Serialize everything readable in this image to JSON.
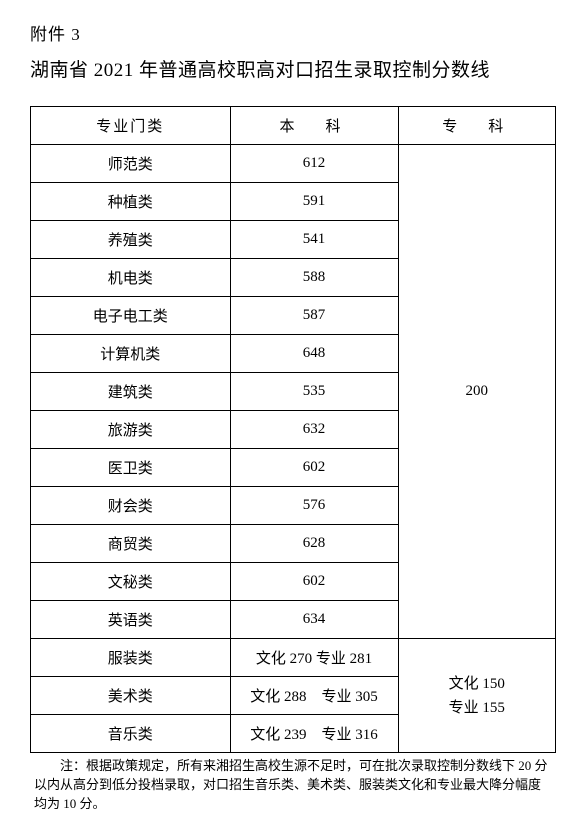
{
  "attachment_label": "附件 3",
  "title": "湖南省 2021 年普通高校职高对口招生录取控制分数线",
  "headers": {
    "category": "专业门类",
    "undergrad": "本　科",
    "junior": "专　科"
  },
  "group1_junior": "200",
  "group1": [
    {
      "cat": "师范类",
      "score": "612"
    },
    {
      "cat": "种植类",
      "score": "591"
    },
    {
      "cat": "养殖类",
      "score": "541"
    },
    {
      "cat": "机电类",
      "score": "588"
    },
    {
      "cat": "电子电工类",
      "score": "587"
    },
    {
      "cat": "计算机类",
      "score": "648"
    },
    {
      "cat": "建筑类",
      "score": "535"
    },
    {
      "cat": "旅游类",
      "score": "632"
    },
    {
      "cat": "医卫类",
      "score": "602"
    },
    {
      "cat": "财会类",
      "score": "576"
    },
    {
      "cat": "商贸类",
      "score": "628"
    },
    {
      "cat": "文秘类",
      "score": "602"
    },
    {
      "cat": "英语类",
      "score": "634"
    }
  ],
  "group2_junior_line1": "文化 150",
  "group2_junior_line2": "专业 155",
  "group2": [
    {
      "cat": "服装类",
      "score": "文化 270  专业 281"
    },
    {
      "cat": "美术类",
      "score": "文化 288　专业 305"
    },
    {
      "cat": "音乐类",
      "score": "文化 239　专业 316"
    }
  ],
  "footnote": "　　注：根据政策规定，所有来湘招生高校生源不足时，可在批次录取控制分数线下 20 分以内从高分到低分投档录取，对口招生音乐类、美术类、服装类文化和专业最大降分幅度均为 10 分。"
}
